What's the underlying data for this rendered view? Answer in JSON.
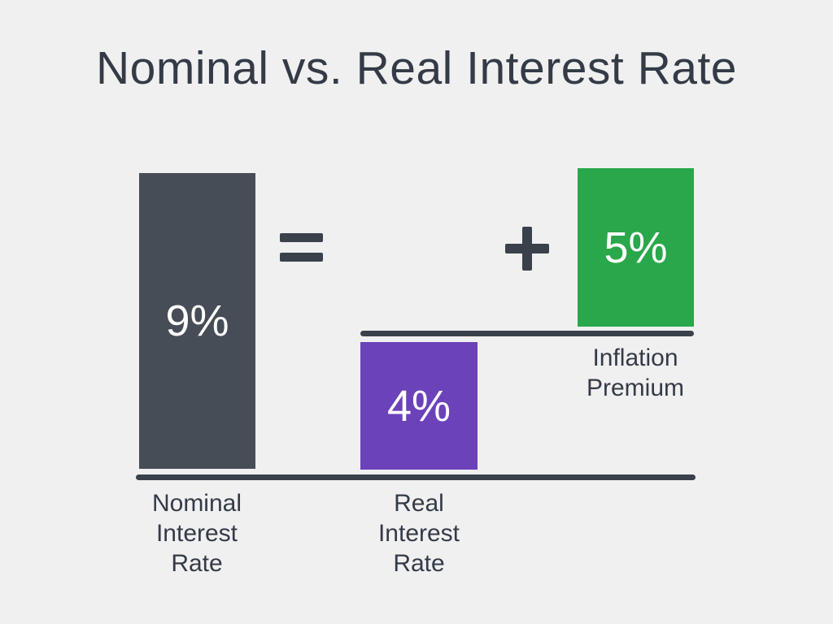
{
  "title": "Nominal vs. Real Interest Rate",
  "operators": {
    "equals": "=",
    "plus": "+"
  },
  "bars": {
    "nominal": {
      "value": "9%",
      "label": "Nominal\nInterest\nRate"
    },
    "real": {
      "value": "4%",
      "label": "Real\nInterest\nRate"
    },
    "inflation": {
      "value": "5%",
      "label": "Inflation\nPremium"
    }
  },
  "colors": {
    "background": "#f0f0f1",
    "title_text": "#343b47",
    "nominal_bar": "#474d57",
    "real_bar": "#6b42b9",
    "inflation_bar": "#2aa74b",
    "value_text": "#ffffff",
    "line": "#3a414b"
  },
  "chart_data": {
    "type": "bar",
    "title": "Nominal vs. Real Interest Rate",
    "categories": [
      "Nominal Interest Rate",
      "Real Interest Rate",
      "Inflation Premium"
    ],
    "values": [
      9,
      4,
      5
    ],
    "unit": "%",
    "data_labels": [
      "9%",
      "4%",
      "5%"
    ],
    "series_colors": [
      "#474d57",
      "#6b42b9",
      "#2aa74b"
    ],
    "annotation": "Nominal Interest Rate (9%) = Real Interest Rate (4%) + Inflation Premium (5%)",
    "axes": "none",
    "grid": false,
    "legend_position": "none"
  }
}
